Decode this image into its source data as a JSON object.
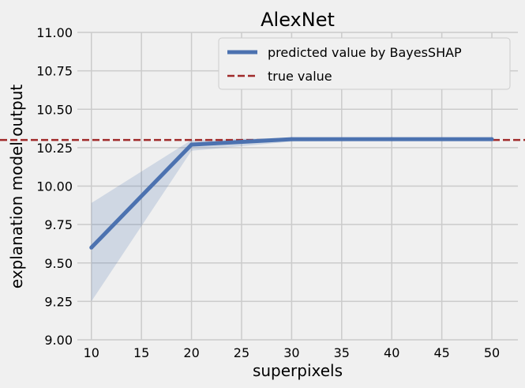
{
  "chart_data": {
    "type": "line",
    "title": "AlexNet",
    "xlabel": "superpixels",
    "ylabel": "explanation model output",
    "xlim": [
      8.6,
      52.6
    ],
    "ylim": [
      9.0,
      11.0
    ],
    "xticks": [
      10,
      15,
      20,
      25,
      30,
      35,
      40,
      45,
      50
    ],
    "yticks": [
      9.0,
      9.25,
      9.5,
      9.75,
      10.0,
      10.25,
      10.5,
      10.75,
      11.0
    ],
    "ytick_labels": [
      "9.00",
      "9.25",
      "9.50",
      "9.75",
      "10.00",
      "10.25",
      "10.50",
      "10.75",
      "11.00"
    ],
    "grid": true,
    "legend_position": "top-right",
    "series": [
      {
        "name": "predicted value by BayesSHAP",
        "style": "solid",
        "color": "#4c72b0",
        "x": [
          10,
          20,
          30,
          40,
          50
        ],
        "y": [
          9.6,
          10.27,
          10.305,
          10.305,
          10.305
        ],
        "band_lower": [
          9.25,
          10.23,
          10.29,
          10.295,
          10.295
        ],
        "band_upper": [
          9.89,
          10.3,
          10.315,
          10.315,
          10.315
        ]
      },
      {
        "name": "true value",
        "style": "dashed",
        "color": "#a02a2a",
        "y_constant": 10.3
      }
    ]
  }
}
